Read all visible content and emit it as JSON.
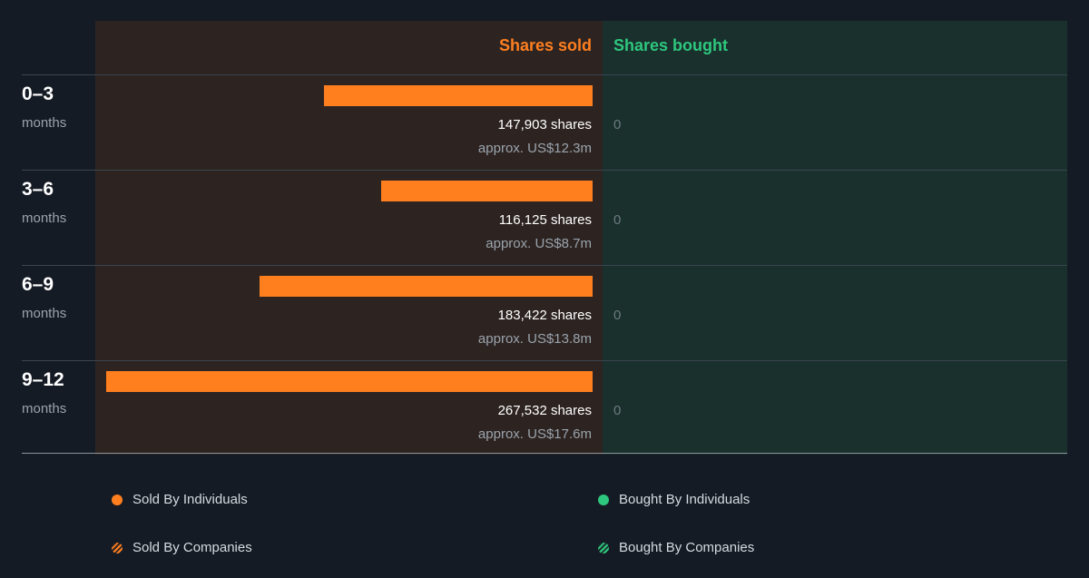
{
  "chart_data": {
    "type": "bar",
    "orientation": "horizontal",
    "columns": {
      "sold": "Shares sold",
      "bought": "Shares bought"
    },
    "period_unit": "months",
    "categories": [
      "0–3",
      "3–6",
      "6–9",
      "9–12"
    ],
    "sold": [
      147903,
      116125,
      183422,
      267532
    ],
    "sold_labels": [
      "147,903 shares",
      "116,125 shares",
      "183,422 shares",
      "267,532 shares"
    ],
    "sold_value_labels": [
      "approx. US$12.3m",
      "approx. US$8.7m",
      "approx. US$13.8m",
      "approx. US$17.6m"
    ],
    "bought": [
      0,
      0,
      0,
      0
    ],
    "bought_labels": [
      "0",
      "0",
      "0",
      "0"
    ],
    "series": [
      {
        "name": "Sold By Individuals",
        "color": "#ff7f1f",
        "marker": "solid",
        "values": [
          147903,
          116125,
          183422,
          267532
        ]
      },
      {
        "name": "Bought By Individuals",
        "color": "#2ec77e",
        "marker": "solid",
        "values": [
          0,
          0,
          0,
          0
        ]
      },
      {
        "name": "Sold By Companies",
        "color": "#ff7f1f",
        "marker": "striped",
        "values": [
          0,
          0,
          0,
          0
        ]
      },
      {
        "name": "Bought By Companies",
        "color": "#2ec77e",
        "marker": "striped",
        "values": [
          0,
          0,
          0,
          0
        ]
      }
    ],
    "legend_position": "bottom",
    "colors": {
      "sold": "#ff7f1f",
      "bought": "#2ec77e",
      "sold_bg": "#2d2421",
      "bought_bg": "#19302d",
      "page_bg": "#151b24"
    }
  }
}
